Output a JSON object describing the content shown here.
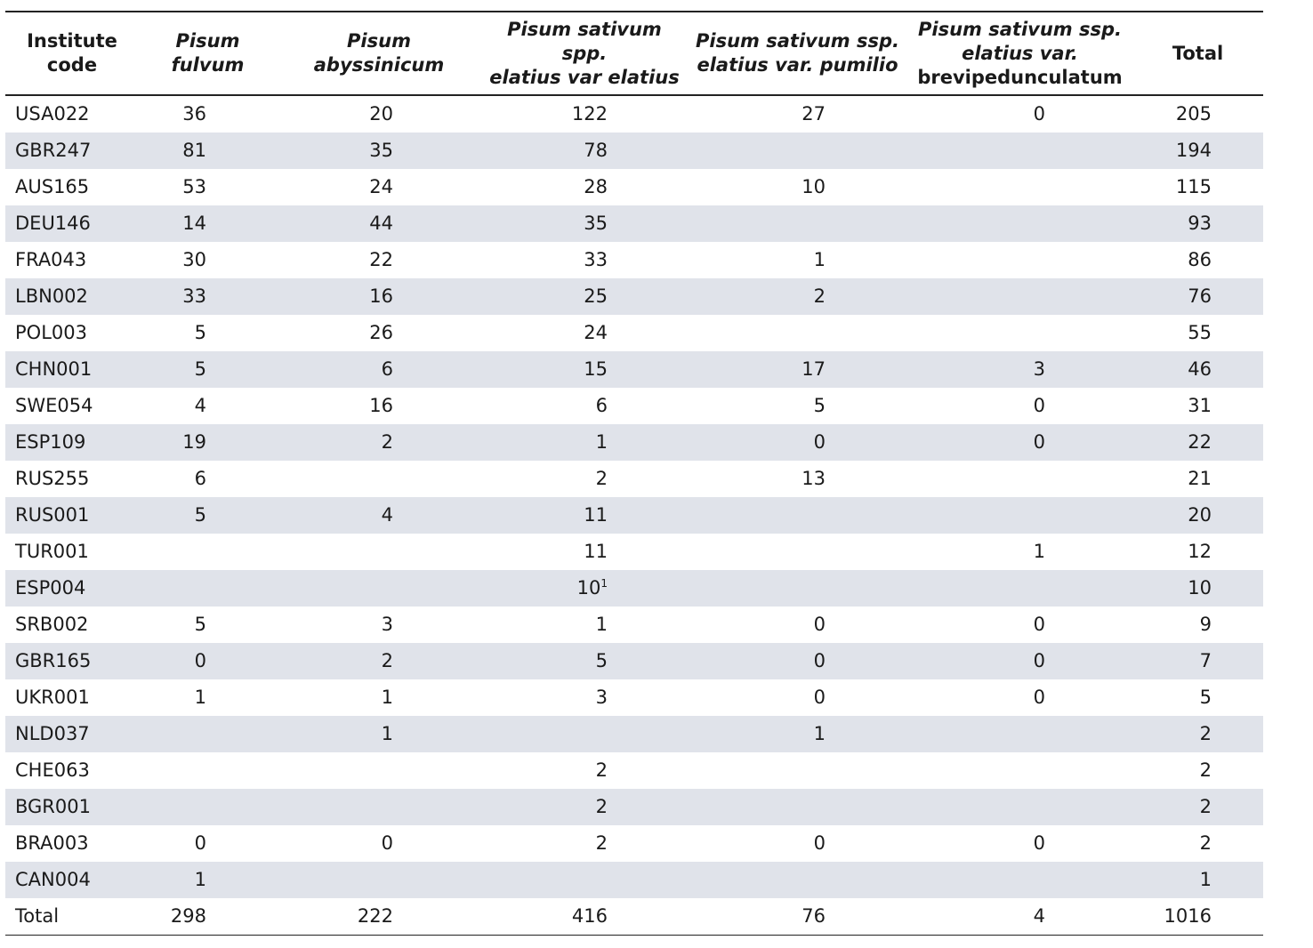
{
  "table": {
    "headers": [
      {
        "parts": [
          {
            "t": "Institute",
            "i": false
          },
          {
            "t": "code",
            "i": false
          }
        ]
      },
      {
        "parts": [
          {
            "t": "Pisum",
            "i": true
          },
          {
            "t": "fulvum",
            "i": true
          }
        ]
      },
      {
        "parts": [
          {
            "t": "Pisum",
            "i": true
          },
          {
            "t": "abyssinicum",
            "i": true
          }
        ]
      },
      {
        "parts": [
          {
            "t": "Pisum sativum spp.",
            "i": true
          },
          {
            "t": "elatius var elatius",
            "i": true
          }
        ]
      },
      {
        "parts": [
          {
            "t": "Pisum sativum ssp.",
            "i": true
          },
          {
            "t": "elatius var. pumilio",
            "i": true
          }
        ]
      },
      {
        "parts": [
          {
            "t": "Pisum sativum ssp.",
            "i": true
          },
          {
            "t": "elatius var.",
            "i": true
          },
          {
            "t": "brevipedunculatum",
            "i": false
          }
        ]
      },
      {
        "parts": [
          {
            "t": "Total",
            "i": false
          }
        ]
      }
    ],
    "rows": [
      {
        "code": "USA022",
        "vals": [
          "36",
          "20",
          "122",
          "27",
          "0",
          "205"
        ]
      },
      {
        "code": "GBR247",
        "vals": [
          "81",
          "35",
          "78",
          "",
          "",
          "194"
        ]
      },
      {
        "code": "AUS165",
        "vals": [
          "53",
          "24",
          "28",
          "10",
          "",
          "115"
        ]
      },
      {
        "code": "DEU146",
        "vals": [
          "14",
          "44",
          "35",
          "",
          "",
          "93"
        ]
      },
      {
        "code": "FRA043",
        "vals": [
          "30",
          "22",
          "33",
          "1",
          "",
          "86"
        ]
      },
      {
        "code": "LBN002",
        "vals": [
          "33",
          "16",
          "25",
          "2",
          "",
          "76"
        ]
      },
      {
        "code": "POL003",
        "vals": [
          "5",
          "26",
          "24",
          "",
          "",
          "55"
        ]
      },
      {
        "code": "CHN001",
        "vals": [
          "5",
          "6",
          "15",
          "17",
          "3",
          "46"
        ]
      },
      {
        "code": "SWE054",
        "vals": [
          "4",
          "16",
          "6",
          "5",
          "0",
          "31"
        ]
      },
      {
        "code": "ESP109",
        "vals": [
          "19",
          "2",
          "1",
          "0",
          "0",
          "22"
        ]
      },
      {
        "code": "RUS255",
        "vals": [
          "6",
          "",
          "2",
          "13",
          "",
          "21"
        ]
      },
      {
        "code": "RUS001",
        "vals": [
          "5",
          "4",
          "11",
          "",
          "",
          "20"
        ]
      },
      {
        "code": "TUR001",
        "vals": [
          "",
          "",
          "11",
          "",
          "1",
          "12"
        ]
      },
      {
        "code": "ESP004",
        "vals": [
          "",
          "",
          "10",
          "",
          "",
          "10"
        ],
        "footnote": "1"
      },
      {
        "code": "SRB002",
        "vals": [
          "5",
          "3",
          "1",
          "0",
          "0",
          "9"
        ]
      },
      {
        "code": "GBR165",
        "vals": [
          "0",
          "2",
          "5",
          "0",
          "0",
          "7"
        ]
      },
      {
        "code": "UKR001",
        "vals": [
          "1",
          "1",
          "3",
          "0",
          "0",
          "5"
        ]
      },
      {
        "code": "NLD037",
        "vals": [
          "",
          "1",
          "",
          "1",
          "",
          "2"
        ]
      },
      {
        "code": "CHE063",
        "vals": [
          "",
          "",
          "2",
          "",
          "",
          "2"
        ]
      },
      {
        "code": "BGR001",
        "vals": [
          "",
          "",
          "2",
          "",
          "",
          "2"
        ]
      },
      {
        "code": "BRA003",
        "vals": [
          "0",
          "0",
          "2",
          "0",
          "0",
          "2"
        ]
      },
      {
        "code": "CAN004",
        "vals": [
          "1",
          "",
          "",
          "",
          "",
          "1"
        ]
      },
      {
        "code": "Total",
        "vals": [
          "298",
          "222",
          "416",
          "76",
          "4",
          "1016"
        ]
      }
    ]
  }
}
